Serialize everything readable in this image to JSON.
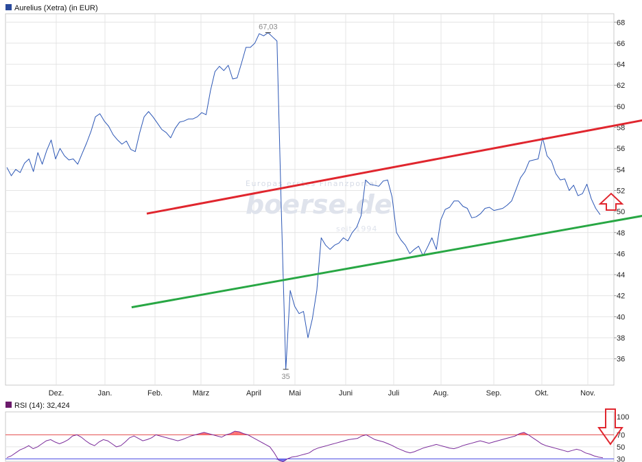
{
  "chart_data": [
    {
      "type": "line",
      "legend": "Aurelius (Xetra) (in EUR)",
      "legend_color": "#2a4a9c",
      "line_color": "#2b56b5",
      "ylim": [
        33.5,
        68.8
      ],
      "yticks": [
        "36",
        "38",
        "40",
        "42",
        "44",
        "46",
        "48",
        "50",
        "52",
        "54",
        "56",
        "58",
        "60",
        "62",
        "64",
        "66",
        "68"
      ],
      "months": [
        "Dez.",
        "Jan.",
        "Feb.",
        "März",
        "April",
        "Mai",
        "Juni",
        "Juli",
        "Aug.",
        "Sep.",
        "Okt.",
        "Nov."
      ],
      "max_label": "67,03",
      "min_label": "35",
      "series": [
        {
          "values": [
            54.2,
            53.4,
            54.0,
            53.7,
            54.6,
            55.0,
            53.8,
            55.6,
            54.5,
            55.8,
            56.8,
            55.0,
            56.0,
            55.3,
            54.9,
            55.0,
            54.5,
            55.5,
            56.5,
            57.6,
            59.0,
            59.3,
            58.6,
            58.1,
            57.3,
            56.8,
            56.4,
            56.7,
            55.9,
            55.7,
            57.5,
            59.0,
            59.5,
            59.0,
            58.4,
            57.8,
            57.5,
            57.0,
            57.9,
            58.5,
            58.6,
            58.8,
            58.8,
            59.0,
            59.4,
            59.2,
            61.5,
            63.3,
            63.8,
            63.4,
            63.9,
            62.6,
            62.7,
            64.1,
            65.6,
            65.6,
            66.0,
            66.9,
            66.7,
            67.0,
            66.6,
            66.2,
            50.0,
            35.0,
            42.5,
            41.0,
            40.3,
            40.5,
            38.0,
            39.8,
            42.5,
            47.5,
            46.8,
            46.4,
            46.8,
            47.0,
            47.5,
            47.2,
            48.0,
            48.5,
            49.6,
            53.0,
            52.6,
            52.5,
            52.4,
            52.9,
            53.0,
            51.4,
            48.0,
            47.3,
            46.8,
            46.0,
            46.4,
            46.7,
            45.8,
            46.6,
            47.5,
            46.4,
            49.2,
            50.2,
            50.4,
            51.0,
            51.0,
            50.5,
            50.3,
            49.4,
            49.5,
            49.8,
            50.3,
            50.4,
            50.1,
            50.2,
            50.3,
            50.6,
            51.0,
            52.1,
            53.2,
            53.8,
            54.8,
            54.9,
            55.0,
            57.0,
            55.3,
            54.8,
            53.6,
            53.0,
            53.1,
            52.0,
            52.5,
            51.5,
            51.7,
            52.6,
            51.2,
            50.3,
            49.7
          ]
        }
      ],
      "channel_lines": [
        {
          "name": "upper",
          "color": "#e0262e",
          "from": [
            0.231,
            49.8
          ],
          "to": [
            1.08,
            59.0
          ]
        },
        {
          "name": "lower",
          "color": "#28a744",
          "from": [
            0.206,
            40.9
          ],
          "to": [
            1.07,
            49.8
          ]
        }
      ],
      "annotation": "arrow-up"
    },
    {
      "type": "line",
      "legend": "RSI (14): 32,424",
      "legend_color": "#6b1a6b",
      "line_color": "#7a2a9a",
      "ylim": [
        26,
        108
      ],
      "yticks": [
        "30",
        "50",
        "70",
        "100"
      ],
      "reference_lines": [
        70,
        30
      ],
      "overbought_color": "#ff5a5a",
      "oversold_color": "#5a5ae6",
      "series": [
        {
          "values": [
            32,
            35,
            40,
            45,
            48,
            52,
            47,
            50,
            55,
            60,
            62,
            58,
            55,
            58,
            62,
            68,
            70,
            66,
            60,
            55,
            52,
            58,
            62,
            60,
            55,
            50,
            52,
            58,
            65,
            68,
            64,
            60,
            62,
            65,
            70,
            68,
            66,
            64,
            62,
            60,
            62,
            65,
            68,
            70,
            72,
            74,
            72,
            70,
            68,
            66,
            70,
            72,
            76,
            75,
            72,
            70,
            66,
            62,
            58,
            54,
            50,
            40,
            28,
            25,
            30,
            33,
            34,
            36,
            38,
            40,
            45,
            48,
            50,
            52,
            54,
            56,
            58,
            60,
            62,
            63,
            64,
            68,
            70,
            66,
            62,
            60,
            58,
            55,
            52,
            48,
            45,
            42,
            40,
            42,
            45,
            48,
            50,
            52,
            54,
            52,
            50,
            48,
            47,
            49,
            52,
            54,
            56,
            58,
            60,
            58,
            56,
            58,
            60,
            62,
            64,
            66,
            68,
            72,
            74,
            70,
            65,
            60,
            55,
            52,
            50,
            48,
            46,
            44,
            42,
            44,
            46,
            44,
            40,
            38,
            35,
            33,
            32
          ]
        }
      ]
    }
  ],
  "watermark": {
    "line1": "Europas erstes Finanzportal",
    "brand": "boerse.de",
    "registered": "®",
    "line3": "seit 1994"
  },
  "colors": {
    "grid": "#e4e4e4",
    "frame": "#b0b0b0",
    "arrow": "#e0262e"
  }
}
